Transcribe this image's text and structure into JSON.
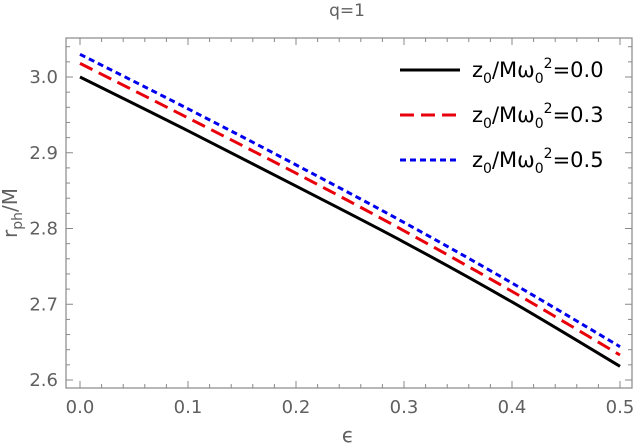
{
  "chart_data": {
    "type": "line",
    "title": "q=1",
    "xlabel": "ϵ",
    "ylabel": {
      "main": "r",
      "sub": "ph",
      "tail": "/M"
    },
    "xlim": [
      0.0,
      0.5
    ],
    "ylim": [
      2.6,
      3.05
    ],
    "x_ticks": [
      "0.0",
      "0.1",
      "0.2",
      "0.3",
      "0.4",
      "0.5"
    ],
    "y_ticks": [
      "2.6",
      "2.7",
      "2.8",
      "2.9",
      "3.0"
    ],
    "grid": false,
    "legend_position": "top-right",
    "series": [
      {
        "legend": {
          "a": "z",
          "a_sub": "0",
          "b": "/Mω",
          "b_sub": "0",
          "sup": "2",
          "c": "=0.0"
        },
        "color": "#000000",
        "dash": "solid",
        "x": [
          0.0,
          0.1,
          0.2,
          0.3,
          0.4,
          0.5
        ],
        "y": [
          3.0,
          2.929,
          2.856,
          2.782,
          2.703,
          2.618
        ]
      },
      {
        "legend": {
          "a": "z",
          "a_sub": "0",
          "b": "/Mω",
          "b_sub": "0",
          "sup": "2",
          "c": "=0.3"
        },
        "color": "#e8000b",
        "dash": "long",
        "x": [
          0.0,
          0.1,
          0.2,
          0.3,
          0.4,
          0.5
        ],
        "y": [
          3.018,
          2.946,
          2.873,
          2.797,
          2.717,
          2.633
        ]
      },
      {
        "legend": {
          "a": "z",
          "a_sub": "0",
          "b": "/Mω",
          "b_sub": "0",
          "sup": "2",
          "c": "=0.5"
        },
        "color": "#0000ee",
        "dash": "short",
        "x": [
          0.0,
          0.1,
          0.2,
          0.3,
          0.4,
          0.5
        ],
        "y": [
          3.03,
          2.958,
          2.884,
          2.808,
          2.728,
          2.644
        ]
      }
    ]
  }
}
